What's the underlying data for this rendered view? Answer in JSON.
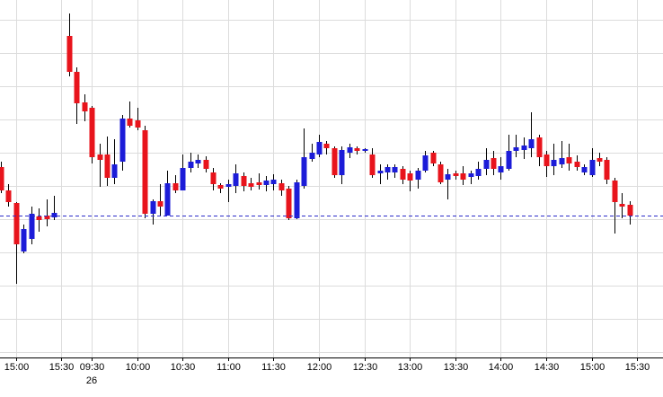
{
  "chart_data": {
    "type": "candlestick",
    "categories": [
      null,
      null,
      "15:00",
      null,
      null,
      null,
      null,
      null,
      "15:30",
      null,
      null,
      null,
      "09:30",
      null,
      null,
      null,
      null,
      null,
      "10:00",
      null,
      null,
      null,
      null,
      null,
      "10:30",
      null,
      null,
      null,
      null,
      null,
      "11:00",
      null,
      null,
      null,
      null,
      null,
      "11:30",
      null,
      null,
      null,
      null,
      null,
      "12:00",
      null,
      null,
      null,
      null,
      null,
      "12:30",
      null,
      null,
      null,
      null,
      null,
      "13:00",
      null,
      null,
      null,
      null,
      null,
      "13:30",
      null,
      null,
      null,
      null,
      null,
      "14:00",
      null,
      null,
      null,
      null,
      null,
      "14:30",
      null,
      null,
      null,
      null,
      null,
      "15:00",
      null,
      null,
      null,
      null,
      null,
      "15:30"
    ],
    "date_labels": [
      null,
      null,
      null,
      null,
      null,
      null,
      null,
      null,
      null,
      null,
      null,
      null,
      "26",
      null,
      null,
      null,
      null,
      null,
      null,
      null,
      null,
      null,
      null,
      null,
      null,
      null,
      null,
      null,
      null,
      null,
      null,
      null,
      null,
      null,
      null,
      null,
      null,
      null,
      null,
      null,
      null,
      null,
      null,
      null,
      null,
      null,
      null,
      null,
      null,
      null,
      null,
      null,
      null,
      null,
      null,
      null,
      null,
      null,
      null,
      null,
      null,
      null,
      null,
      null,
      null,
      null,
      null,
      null,
      null,
      null,
      null,
      null,
      null,
      null,
      null,
      null,
      null,
      null,
      null,
      null,
      null,
      null,
      null,
      null,
      null
    ],
    "open": [
      212,
      186,
      172,
      118,
      132,
      157,
      158,
      156,
      null,
      358,
      318,
      284,
      278,
      226,
      226,
      200,
      218,
      266,
      264,
      253,
      160,
      174,
      158,
      194,
      186,
      211,
      216,
      220,
      206,
      192,
      190,
      191,
      202,
      194,
      195,
      192,
      193,
      194,
      188,
      155,
      191,
      221,
      226,
      238,
      233,
      203,
      228,
      233,
      230,
      226,
      205,
      206,
      206,
      210,
      205,
      198,
      208,
      228,
      215,
      198,
      205,
      205,
      201,
      202,
      210,
      222,
      206,
      210,
      230,
      231,
      233,
      245,
      226,
      213,
      215,
      223,
      218,
      206,
      203,
      222,
      220,
      197,
      171,
      170,
      null
    ],
    "high": [
      218,
      193,
      173,
      148,
      168,
      166,
      176,
      180,
      null,
      383,
      323,
      293,
      280,
      238,
      246,
      243,
      270,
      285,
      278,
      258,
      176,
      193,
      208,
      203,
      226,
      228,
      226,
      224,
      211,
      194,
      198,
      215,
      206,
      200,
      205,
      202,
      204,
      198,
      191,
      198,
      255,
      238,
      248,
      241,
      235,
      235,
      238,
      235,
      233,
      233,
      215,
      215,
      215,
      213,
      208,
      211,
      230,
      230,
      218,
      210,
      208,
      213,
      208,
      218,
      233,
      230,
      223,
      248,
      248,
      245,
      273,
      248,
      230,
      238,
      241,
      238,
      225,
      215,
      233,
      228,
      223,
      200,
      183,
      174,
      null
    ],
    "low": [
      183,
      168,
      82,
      116,
      126,
      140,
      146,
      153,
      null,
      313,
      260,
      263,
      216,
      190,
      191,
      193,
      208,
      256,
      253,
      155,
      148,
      158,
      158,
      183,
      186,
      206,
      211,
      206,
      186,
      183,
      173,
      183,
      185,
      186,
      187,
      185,
      186,
      180,
      153,
      154,
      188,
      218,
      223,
      226,
      200,
      193,
      222,
      226,
      228,
      200,
      193,
      198,
      200,
      193,
      185,
      188,
      206,
      213,
      193,
      176,
      198,
      192,
      193,
      198,
      203,
      203,
      198,
      208,
      223,
      221,
      223,
      213,
      201,
      203,
      211,
      208,
      208,
      203,
      201,
      213,
      193,
      138,
      155,
      148,
      null
    ],
    "close": [
      186,
      173,
      126,
      143,
      160,
      153,
      154,
      161,
      null,
      318,
      283,
      274,
      223,
      220,
      200,
      215,
      266,
      258,
      256,
      160,
      174,
      168,
      194,
      186,
      211,
      218,
      220,
      210,
      193,
      188,
      193,
      205,
      191,
      190,
      192,
      197,
      198,
      186,
      155,
      195,
      223,
      228,
      240,
      233,
      203,
      231,
      234,
      230,
      232,
      203,
      208,
      212,
      212,
      198,
      197,
      208,
      225,
      216,
      195,
      204,
      202,
      198,
      205,
      210,
      220,
      210,
      213,
      230,
      234,
      236,
      243,
      223,
      213,
      220,
      222,
      216,
      212,
      212,
      220,
      218,
      198,
      173,
      168,
      158,
      null
    ],
    "up_color": "#1c1cd8",
    "down_color": "#e8141c",
    "reference_line": 158,
    "reference_color": "#2c2cc8",
    "ylim": [
      0,
      398
    ],
    "yticks": [
      6,
      43,
      80,
      117,
      154,
      191,
      228,
      265,
      302,
      339,
      376
    ],
    "grid": true
  }
}
